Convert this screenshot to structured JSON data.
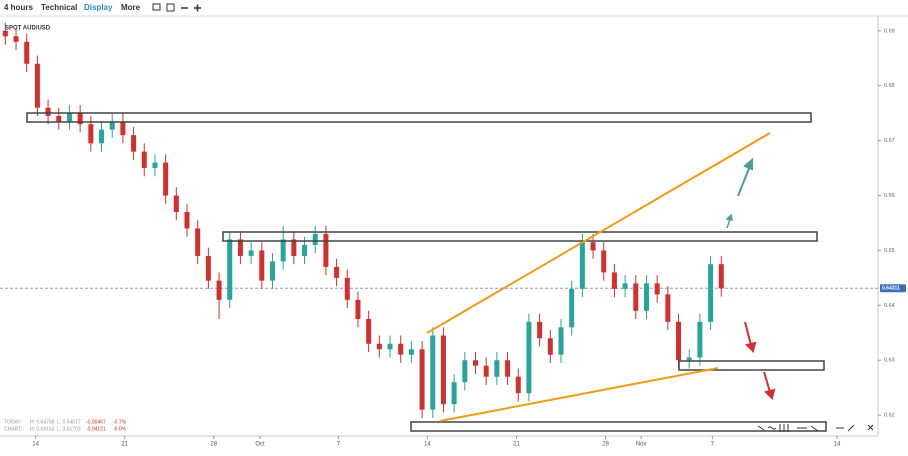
{
  "toolbar": {
    "interval": "4 hours",
    "technical": "Technical",
    "display": "Display",
    "more": "More"
  },
  "chart_data": {
    "type": "candlestick",
    "symbol": "SPOT AUD/USD",
    "up_color": "#26a69a",
    "down_color": "#d32f2f",
    "xlim": [
      -2,
      47.3
    ],
    "ylim": [
      0.6162,
      0.6927
    ],
    "yticks": [
      0.62,
      0.63,
      0.64,
      0.65,
      0.66,
      0.67,
      0.68,
      0.69
    ],
    "xticks": [
      {
        "value": 0,
        "label": "14"
      },
      {
        "value": 5,
        "label": "21"
      },
      {
        "value": 10,
        "label": "28"
      },
      {
        "value": 12.6,
        "label": "Oct"
      },
      {
        "value": 17,
        "label": "7"
      },
      {
        "value": 22,
        "label": "14"
      },
      {
        "value": 27,
        "label": "21"
      },
      {
        "value": 32,
        "label": "28"
      },
      {
        "value": 34,
        "label": "Nov"
      },
      {
        "value": 38,
        "label": "7"
      },
      {
        "value": 45,
        "label": "14"
      }
    ],
    "last_price": {
      "value": 0.64311,
      "label": "0.64311"
    },
    "stats": [
      {
        "label": "TODAY:",
        "high": "H: 0.64798",
        "low": "L: 0.64077",
        "change": "-0.00467",
        "pct": "-0.7%"
      },
      {
        "label": "CHART:",
        "high": "H: 0.69163",
        "low": "L: 0.61703",
        "change": "-0.04121",
        "pct": "-6.0%"
      }
    ],
    "x": [
      -1.7,
      -1.1,
      -0.5,
      0.1,
      0.7,
      1.3,
      1.9,
      2.5,
      3.1,
      3.7,
      4.3,
      4.9,
      5.5,
      6.1,
      6.7,
      7.3,
      7.9,
      8.5,
      9.1,
      9.7,
      10.3,
      10.9,
      11.5,
      12.1,
      12.7,
      13.3,
      13.9,
      14.5,
      15.1,
      15.7,
      16.3,
      16.9,
      17.5,
      18.1,
      18.7,
      19.3,
      19.9,
      20.5,
      21.1,
      21.7,
      22.3,
      22.9,
      23.5,
      24.1,
      24.7,
      25.3,
      25.9,
      26.5,
      27.1,
      27.7,
      28.3,
      28.9,
      29.5,
      30.1,
      30.7,
      31.3,
      31.9,
      32.5,
      33.1,
      33.7,
      34.3,
      34.9,
      35.5,
      36.1,
      36.7,
      37.3,
      37.9,
      38.5
    ],
    "open": [
      0.69,
      0.689,
      0.688,
      0.684,
      0.676,
      0.6745,
      0.6735,
      0.675,
      0.673,
      0.6695,
      0.672,
      0.6735,
      0.671,
      0.668,
      0.665,
      0.666,
      0.66,
      0.657,
      0.654,
      0.649,
      0.6445,
      0.641,
      0.652,
      0.649,
      0.65,
      0.6445,
      0.648,
      0.652,
      0.649,
      0.651,
      0.653,
      0.647,
      0.645,
      0.641,
      0.6375,
      0.633,
      0.632,
      0.633,
      0.631,
      0.632,
      0.621,
      0.6345,
      0.622,
      0.626,
      0.63,
      0.629,
      0.627,
      0.63,
      0.627,
      0.624,
      0.637,
      0.634,
      0.631,
      0.636,
      0.643,
      0.6515,
      0.65,
      0.646,
      0.643,
      0.644,
      0.639,
      0.644,
      0.642,
      0.637,
      0.63,
      0.6305,
      0.637,
      0.6475
    ],
    "high": [
      0.6915,
      0.6905,
      0.6895,
      0.6855,
      0.6775,
      0.676,
      0.6765,
      0.6765,
      0.6745,
      0.6735,
      0.675,
      0.675,
      0.6725,
      0.6695,
      0.6675,
      0.6675,
      0.6615,
      0.6585,
      0.6555,
      0.6505,
      0.646,
      0.6535,
      0.6535,
      0.6515,
      0.6515,
      0.6495,
      0.6545,
      0.6535,
      0.6525,
      0.6545,
      0.6545,
      0.6485,
      0.6465,
      0.6425,
      0.639,
      0.6345,
      0.6345,
      0.6345,
      0.6335,
      0.6335,
      0.636,
      0.636,
      0.6275,
      0.6315,
      0.6315,
      0.6305,
      0.6315,
      0.6315,
      0.6285,
      0.6385,
      0.6385,
      0.6355,
      0.6375,
      0.6445,
      0.653,
      0.653,
      0.6515,
      0.6475,
      0.6455,
      0.6455,
      0.6455,
      0.6455,
      0.6435,
      0.6385,
      0.632,
      0.6385,
      0.649,
      0.649
    ],
    "low": [
      0.6875,
      0.6865,
      0.6825,
      0.6745,
      0.673,
      0.672,
      0.672,
      0.6715,
      0.668,
      0.668,
      0.6705,
      0.6695,
      0.6665,
      0.6635,
      0.6635,
      0.6585,
      0.6555,
      0.6525,
      0.6475,
      0.643,
      0.6375,
      0.6395,
      0.6475,
      0.6475,
      0.643,
      0.643,
      0.6465,
      0.6475,
      0.6475,
      0.6495,
      0.6455,
      0.6435,
      0.6395,
      0.636,
      0.6315,
      0.6305,
      0.6305,
      0.6295,
      0.6295,
      0.6195,
      0.6195,
      0.6205,
      0.6205,
      0.6245,
      0.6275,
      0.6255,
      0.6255,
      0.6255,
      0.6225,
      0.6225,
      0.6325,
      0.6295,
      0.6295,
      0.6345,
      0.6415,
      0.6485,
      0.6445,
      0.6415,
      0.6415,
      0.6375,
      0.6375,
      0.6405,
      0.6355,
      0.6285,
      0.6285,
      0.629,
      0.6355,
      0.6416
    ],
    "close": [
      0.689,
      0.688,
      0.684,
      0.676,
      0.6745,
      0.6735,
      0.675,
      0.673,
      0.6695,
      0.672,
      0.6735,
      0.671,
      0.668,
      0.665,
      0.666,
      0.66,
      0.657,
      0.654,
      0.649,
      0.6445,
      0.641,
      0.652,
      0.649,
      0.65,
      0.6445,
      0.648,
      0.652,
      0.649,
      0.651,
      0.653,
      0.647,
      0.645,
      0.641,
      0.6375,
      0.633,
      0.632,
      0.633,
      0.631,
      0.632,
      0.621,
      0.6345,
      0.622,
      0.626,
      0.63,
      0.629,
      0.627,
      0.63,
      0.627,
      0.624,
      0.637,
      0.634,
      0.631,
      0.636,
      0.643,
      0.6515,
      0.65,
      0.646,
      0.643,
      0.644,
      0.639,
      0.644,
      0.642,
      0.637,
      0.63,
      0.6305,
      0.637,
      0.6475,
      0.6431
    ]
  }
}
